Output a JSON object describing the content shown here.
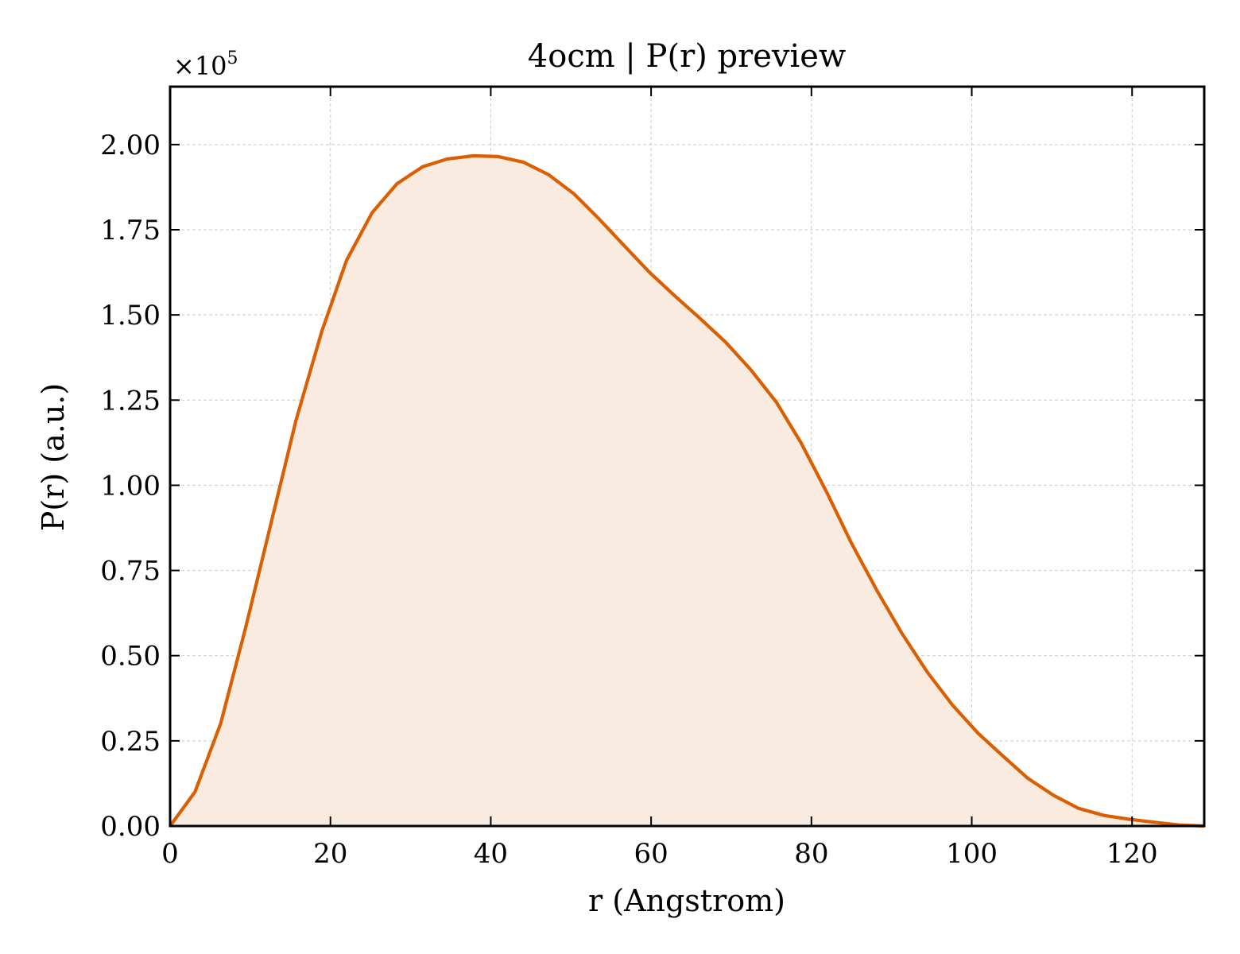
{
  "chart_data": {
    "type": "area",
    "title": "4ocm | P(r) preview",
    "xlabel": "r (Angstrom)",
    "ylabel": "P(r) (a.u.)",
    "y_multiplier_label": "×10",
    "y_multiplier_exponent": "5",
    "xlim": [
      0,
      129
    ],
    "ylim": [
      0,
      2.17
    ],
    "x_ticks": [
      0,
      20,
      40,
      60,
      80,
      100,
      120
    ],
    "x_tick_labels": [
      "0",
      "20",
      "40",
      "60",
      "80",
      "100",
      "120"
    ],
    "y_ticks": [
      0,
      0.25,
      0.5,
      0.75,
      1.0,
      1.25,
      1.5,
      1.75,
      2.0
    ],
    "y_tick_labels": [
      "0.00",
      "0.25",
      "0.50",
      "0.75",
      "1.00",
      "1.25",
      "1.50",
      "1.75",
      "2.00"
    ],
    "grid": true,
    "line_color": "#d95f02",
    "fill_color": "#f9ebe0",
    "series": [
      {
        "x": [
          0,
          3.1,
          6.3,
          9.4,
          12.6,
          15.7,
          18.9,
          22.0,
          25.2,
          28.3,
          31.5,
          34.6,
          37.8,
          40.9,
          44.1,
          47.2,
          50.4,
          53.5,
          56.7,
          59.8,
          63.0,
          66.1,
          69.3,
          72.4,
          75.6,
          78.7,
          81.9,
          85.0,
          88.2,
          91.3,
          94.5,
          97.6,
          100.8,
          103.9,
          107.0,
          110.2,
          113.3,
          116.5,
          119.6,
          122.8,
          125.9,
          129.0
        ],
        "y": [
          0.0,
          0.1,
          0.3,
          0.58,
          0.89,
          1.19,
          1.45,
          1.66,
          1.8,
          1.885,
          1.935,
          1.958,
          1.967,
          1.965,
          1.948,
          1.912,
          1.855,
          1.782,
          1.702,
          1.625,
          1.555,
          1.49,
          1.42,
          1.34,
          1.245,
          1.125,
          0.98,
          0.83,
          0.69,
          0.565,
          0.45,
          0.355,
          0.272,
          0.205,
          0.14,
          0.09,
          0.052,
          0.031,
          0.02,
          0.011,
          0.003,
          0.0
        ]
      }
    ]
  }
}
